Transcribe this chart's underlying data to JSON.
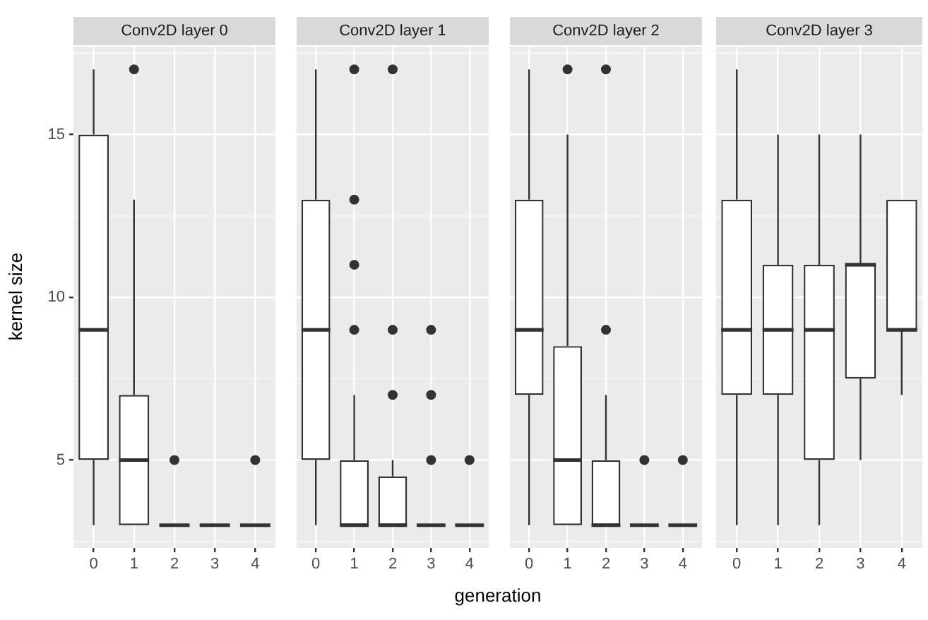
{
  "chart_data": [
    {
      "type": "box",
      "title": "Conv2D layer 0",
      "ylabel": "kernel size",
      "categories": [
        "0",
        "1",
        "2",
        "3",
        "4"
      ],
      "ylim": [
        2.3,
        17.7
      ],
      "yticks": [
        {
          "value": 2.5,
          "label": null
        },
        5,
        {
          "value": 7.5,
          "label": null
        },
        10,
        {
          "value": 12.5,
          "label": null
        },
        15,
        {
          "value": 17.5,
          "label": null
        }
      ],
      "grid": true,
      "boxes": [
        {
          "low": 3,
          "q1": 5,
          "median": 9,
          "q3": 15,
          "high": 17
        },
        {
          "low": 3,
          "q1": 3,
          "median": 5,
          "q3": 7,
          "high": 13,
          "outliers": [
            17
          ]
        },
        {
          "low": 3,
          "q1": 3,
          "median": 3,
          "q3": 3,
          "high": 3,
          "outliers": [
            5
          ]
        },
        {
          "low": 3,
          "q1": 3,
          "median": 3,
          "q3": 3,
          "high": 3
        },
        {
          "low": 3,
          "q1": 3,
          "median": 3,
          "q3": 3,
          "high": 3,
          "outliers": [
            5
          ]
        }
      ]
    },
    {
      "type": "box",
      "title": "Conv2D layer 1",
      "xlabel": "generation",
      "categories": [
        "0",
        "1",
        "2",
        "3",
        "4"
      ],
      "ylim": [
        2.3,
        17.7
      ],
      "yticks": [
        {
          "value": 2.5,
          "label": null
        },
        5,
        {
          "value": 7.5,
          "label": null
        },
        10,
        {
          "value": 12.5,
          "label": null
        },
        15,
        {
          "value": 17.5,
          "label": null
        }
      ],
      "grid": true,
      "tick_labels": "x",
      "boxes": [
        {
          "low": 3,
          "q1": 5,
          "median": 9,
          "q3": 13,
          "high": 17
        },
        {
          "low": 3,
          "q1": 3,
          "median": 3,
          "q3": 5,
          "high": 7,
          "outliers": [
            9,
            11,
            13,
            17
          ]
        },
        {
          "low": 3,
          "q1": 3,
          "median": 3,
          "q3": 4.5,
          "high": 5,
          "outliers": [
            7,
            9,
            17
          ]
        },
        {
          "low": 3,
          "q1": 3,
          "median": 3,
          "q3": 3,
          "high": 3,
          "outliers": [
            5,
            7,
            9
          ]
        },
        {
          "low": 3,
          "q1": 3,
          "median": 3,
          "q3": 3,
          "high": 3,
          "outliers": [
            5
          ]
        }
      ]
    },
    {
      "type": "box",
      "title": "Conv2D layer 2",
      "categories": [
        "0",
        "1",
        "2",
        "3",
        "4"
      ],
      "ylim": [
        2.3,
        17.7
      ],
      "yticks": [
        {
          "value": 2.5,
          "label": null
        },
        5,
        {
          "value": 7.5,
          "label": null
        },
        10,
        {
          "value": 12.5,
          "label": null
        },
        15,
        {
          "value": 17.5,
          "label": null
        }
      ],
      "grid": true,
      "tick_labels": "x",
      "boxes": [
        {
          "low": 3,
          "q1": 7,
          "median": 9,
          "q3": 13,
          "high": 17
        },
        {
          "low": 3,
          "q1": 3,
          "median": 5,
          "q3": 8.5,
          "high": 15,
          "outliers": [
            17
          ]
        },
        {
          "low": 3,
          "q1": 3,
          "median": 3,
          "q3": 5,
          "high": 7,
          "outliers": [
            9,
            17
          ]
        },
        {
          "low": 3,
          "q1": 3,
          "median": 3,
          "q3": 3,
          "high": 3,
          "outliers": [
            5
          ]
        },
        {
          "low": 3,
          "q1": 3,
          "median": 3,
          "q3": 3,
          "high": 3,
          "outliers": [
            5
          ]
        }
      ]
    },
    {
      "type": "box",
      "title": "Conv2D layer 3",
      "categories": [
        "0",
        "1",
        "2",
        "3",
        "4"
      ],
      "ylim": [
        2.3,
        17.7
      ],
      "yticks": [
        {
          "value": 2.5,
          "label": null
        },
        5,
        {
          "value": 7.5,
          "label": null
        },
        10,
        {
          "value": 12.5,
          "label": null
        },
        15,
        {
          "value": 17.5,
          "label": null
        }
      ],
      "grid": true,
      "tick_labels": "x",
      "boxes": [
        {
          "low": 3,
          "q1": 7,
          "median": 9,
          "q3": 13,
          "high": 17
        },
        {
          "low": 3,
          "q1": 7,
          "median": 9,
          "q3": 11,
          "high": 15
        },
        {
          "low": 3,
          "q1": 5,
          "median": 9,
          "q3": 11,
          "high": 15
        },
        {
          "low": 5,
          "q1": 7.5,
          "median": 11,
          "q3": 11,
          "high": 15
        },
        {
          "low": 7,
          "q1": 9,
          "median": 9,
          "q3": 13,
          "high": 13
        }
      ]
    }
  ]
}
